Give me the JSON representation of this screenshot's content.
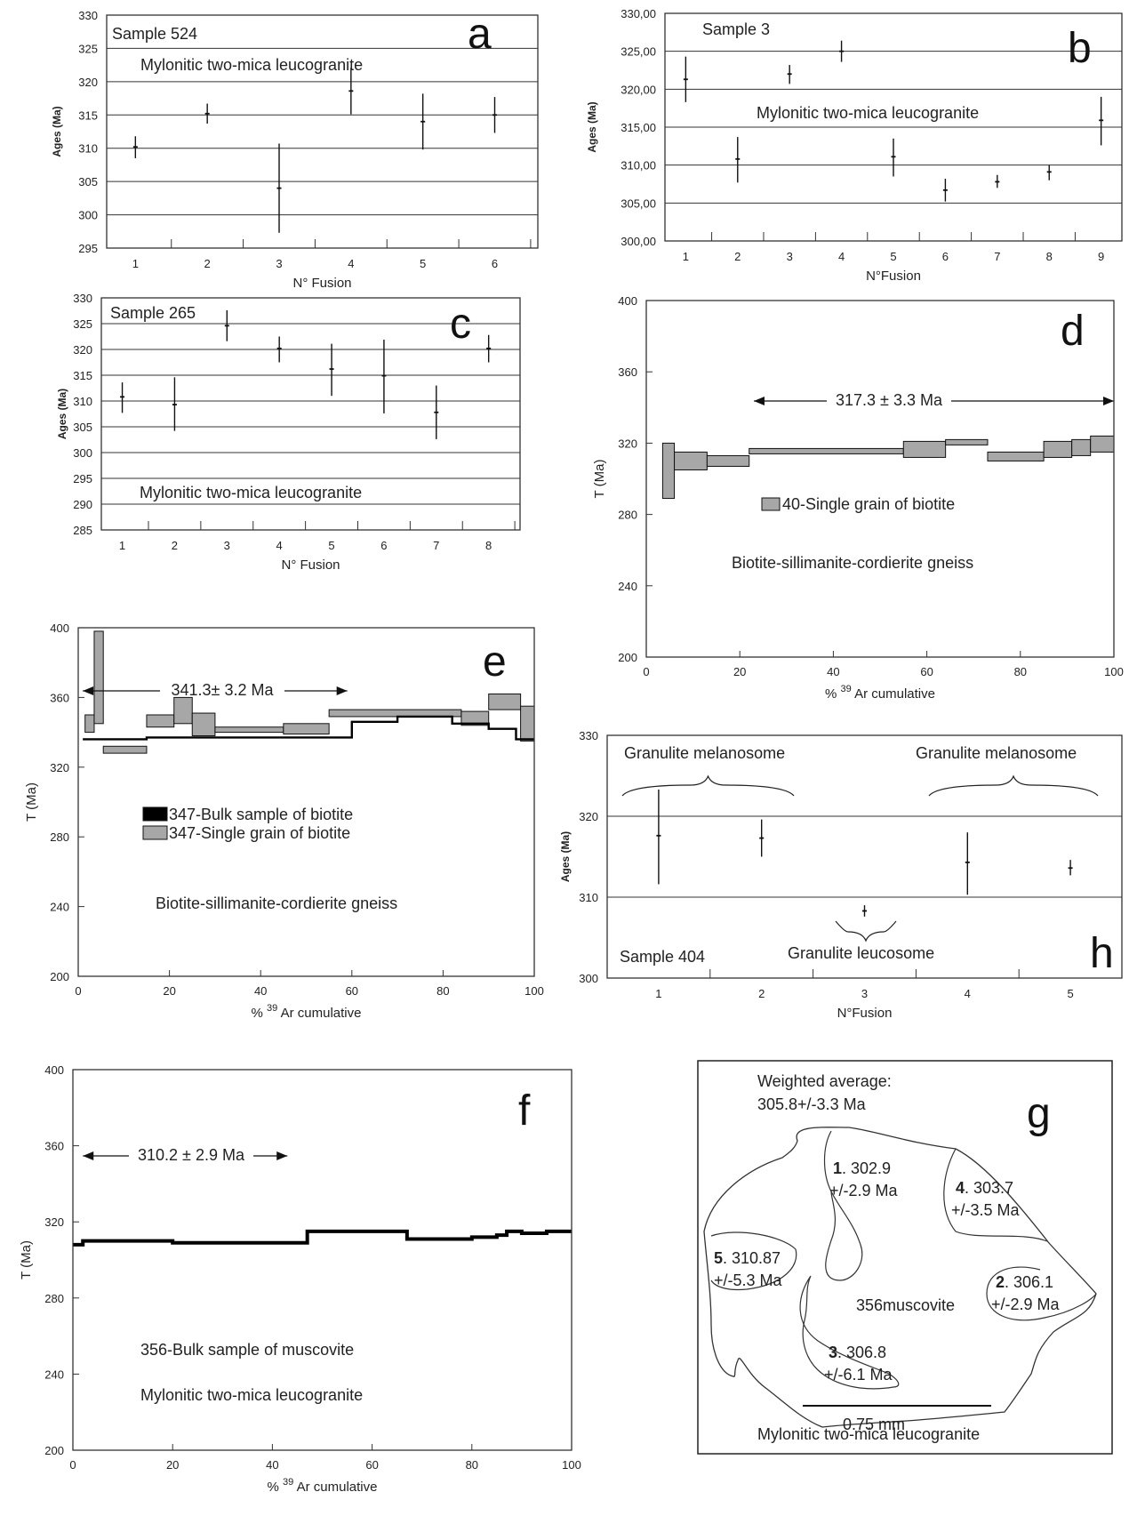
{
  "chart_data": [
    {
      "id": "a",
      "type": "scatter",
      "panel_letter": "a",
      "sample_label": "Sample 524",
      "annotation": "Mylonitic two-mica leucogranite",
      "xlabel": "N° Fusion",
      "ylabel": "Ages (Ma)",
      "x_ticks": [
        "1",
        "2",
        "3",
        "4",
        "5",
        "6"
      ],
      "y_ticks": [
        "330",
        "325",
        "320",
        "315",
        "310",
        "305",
        "300",
        "295"
      ],
      "ylim": [
        295,
        330
      ],
      "grid": "horizontal",
      "points": [
        {
          "x": 1,
          "y": 310.2,
          "low": 308.5,
          "high": 311.8
        },
        {
          "x": 2,
          "y": 315.2,
          "low": 313.7,
          "high": 316.7
        },
        {
          "x": 3,
          "y": 304.0,
          "low": 297.3,
          "high": 310.7
        },
        {
          "x": 4,
          "y": 318.6,
          "low": 315.1,
          "high": 322.1
        },
        {
          "x": 5,
          "y": 314.0,
          "low": 309.8,
          "high": 318.2
        },
        {
          "x": 6,
          "y": 315.0,
          "low": 312.3,
          "high": 317.7
        }
      ]
    },
    {
      "id": "b",
      "type": "scatter",
      "panel_letter": "b",
      "sample_label": "Sample 3",
      "annotation": "Mylonitic two-mica leucogranite",
      "xlabel": "N°Fusion",
      "ylabel": "Ages (Ma)",
      "x_ticks": [
        "1",
        "2",
        "3",
        "4",
        "5",
        "6",
        "7",
        "8",
        "9"
      ],
      "y_ticks": [
        "330,00",
        "325,00",
        "320,00",
        "315,00",
        "310,00",
        "305,00",
        "300,00"
      ],
      "ylim": [
        300,
        330
      ],
      "grid": "horizontal",
      "points": [
        {
          "x": 1,
          "y": 321.3,
          "low": 318.3,
          "high": 324.3
        },
        {
          "x": 2,
          "y": 310.8,
          "low": 307.7,
          "high": 313.7
        },
        {
          "x": 3,
          "y": 322.0,
          "low": 320.7,
          "high": 323.2
        },
        {
          "x": 4,
          "y": 325.0,
          "low": 323.6,
          "high": 326.4
        },
        {
          "x": 5,
          "y": 311.1,
          "low": 308.5,
          "high": 313.5
        },
        {
          "x": 6,
          "y": 306.7,
          "low": 305.2,
          "high": 308.2
        },
        {
          "x": 7,
          "y": 307.8,
          "low": 307.0,
          "high": 308.7
        },
        {
          "x": 8,
          "y": 309.1,
          "low": 308.0,
          "high": 310.0
        },
        {
          "x": 9,
          "y": 315.9,
          "low": 312.6,
          "high": 319.0
        }
      ]
    },
    {
      "id": "c",
      "type": "scatter",
      "panel_letter": "c",
      "sample_label": "Sample 265",
      "annotation": "Mylonitic two-mica leucogranite",
      "xlabel": "N° Fusion",
      "ylabel": "Ages (Ma)",
      "x_ticks": [
        "1",
        "2",
        "3",
        "4",
        "5",
        "6",
        "7",
        "8"
      ],
      "y_ticks": [
        "330",
        "325",
        "320",
        "315",
        "310",
        "305",
        "300",
        "295",
        "290",
        "285"
      ],
      "ylim": [
        285,
        330
      ],
      "grid": "horizontal",
      "points": [
        {
          "x": 1,
          "y": 310.8,
          "low": 307.7,
          "high": 313.6
        },
        {
          "x": 2,
          "y": 309.3,
          "low": 304.2,
          "high": 314.6
        },
        {
          "x": 3,
          "y": 324.6,
          "low": 321.6,
          "high": 327.6
        },
        {
          "x": 4,
          "y": 320.2,
          "low": 317.5,
          "high": 322.5
        },
        {
          "x": 5,
          "y": 316.2,
          "low": 311.0,
          "high": 321.1
        },
        {
          "x": 6,
          "y": 314.9,
          "low": 307.6,
          "high": 321.9
        },
        {
          "x": 7,
          "y": 307.8,
          "low": 302.6,
          "high": 313.0
        },
        {
          "x": 8,
          "y": 320.2,
          "low": 317.5,
          "high": 322.8
        }
      ]
    },
    {
      "id": "d",
      "type": "area",
      "panel_letter": "d",
      "annotation": "Biotite-sillimanite-cordierite gneiss",
      "plateau_label": "317.3 ± 3.3 Ma",
      "legend_label": "40-Single grain of biotite",
      "xlabel_prefix": "% ",
      "xlabel_sup": "39",
      "xlabel_rest": " Ar cumulative",
      "ylabel": "T (Ma)",
      "x_ticks": [
        "0",
        "20",
        "40",
        "60",
        "80",
        "100"
      ],
      "y_ticks": [
        "400",
        "360",
        "320",
        "280",
        "240",
        "200"
      ],
      "xlim": [
        0,
        100
      ],
      "ylim": [
        200,
        400
      ],
      "plateau_arrow": {
        "from": 23,
        "to": 100
      },
      "steps": [
        {
          "x0": 3.5,
          "x1": 6,
          "lo": 289,
          "hi": 320
        },
        {
          "x0": 6,
          "x1": 13,
          "lo": 305,
          "hi": 315
        },
        {
          "x0": 13,
          "x1": 22,
          "lo": 307,
          "hi": 313
        },
        {
          "x0": 22,
          "x1": 55,
          "lo": 314,
          "hi": 317
        },
        {
          "x0": 55,
          "x1": 64,
          "lo": 312,
          "hi": 321
        },
        {
          "x0": 64,
          "x1": 73,
          "lo": 319,
          "hi": 322
        },
        {
          "x0": 73,
          "x1": 85,
          "lo": 310,
          "hi": 315
        },
        {
          "x0": 85,
          "x1": 91,
          "lo": 312,
          "hi": 321
        },
        {
          "x0": 91,
          "x1": 95,
          "lo": 313,
          "hi": 322
        },
        {
          "x0": 95,
          "x1": 100,
          "lo": 315,
          "hi": 324
        }
      ]
    },
    {
      "id": "e",
      "type": "area",
      "panel_letter": "e",
      "annotation": "Biotite-sillimanite-cordierite gneiss",
      "plateau_label": "341.3± 3.2 Ma",
      "legend": [
        {
          "name": "347-Bulk sample of biotite",
          "color": "#000000"
        },
        {
          "name": "347-Single grain of biotite",
          "color": "#a7a7a7"
        }
      ],
      "xlabel_prefix": "% ",
      "xlabel_sup": "39",
      "xlabel_rest": " Ar cumulative",
      "ylabel": "T (Ma)",
      "x_ticks": [
        "0",
        "20",
        "40",
        "60",
        "80",
        "100"
      ],
      "y_ticks": [
        "400",
        "360",
        "320",
        "280",
        "240",
        "200"
      ],
      "xlim": [
        0,
        100
      ],
      "ylim": [
        200,
        400
      ],
      "plateau_arrow": {
        "from": 1,
        "to": 59
      },
      "single_grain_steps": [
        {
          "x0": 1.5,
          "x1": 3.5,
          "lo": 340,
          "hi": 350
        },
        {
          "x0": 3.5,
          "x1": 5.5,
          "lo": 345,
          "hi": 398
        },
        {
          "x0": 5.5,
          "x1": 15,
          "lo": 328,
          "hi": 332
        },
        {
          "x0": 15,
          "x1": 21,
          "lo": 343,
          "hi": 350
        },
        {
          "x0": 21,
          "x1": 25,
          "lo": 345,
          "hi": 360
        },
        {
          "x0": 25,
          "x1": 30,
          "lo": 338,
          "hi": 351
        },
        {
          "x0": 30,
          "x1": 45,
          "lo": 340,
          "hi": 343
        },
        {
          "x0": 45,
          "x1": 55,
          "lo": 339,
          "hi": 345
        },
        {
          "x0": 55,
          "x1": 84,
          "lo": 349,
          "hi": 353
        },
        {
          "x0": 84,
          "x1": 90,
          "lo": 344,
          "hi": 352
        },
        {
          "x0": 90,
          "x1": 97,
          "lo": 353,
          "hi": 362
        },
        {
          "x0": 97,
          "x1": 100,
          "lo": 335,
          "hi": 355
        }
      ],
      "bulk_steps": [
        {
          "x0": 1,
          "x1": 15,
          "y": 336
        },
        {
          "x0": 15,
          "x1": 30,
          "y": 337
        },
        {
          "x0": 30,
          "x1": 60,
          "y": 337
        },
        {
          "x0": 60,
          "x1": 70,
          "y": 346
        },
        {
          "x0": 70,
          "x1": 82,
          "y": 349
        },
        {
          "x0": 82,
          "x1": 90,
          "y": 345
        },
        {
          "x0": 90,
          "x1": 96,
          "y": 342
        },
        {
          "x0": 96,
          "x1": 100,
          "y": 336
        }
      ]
    },
    {
      "id": "h",
      "type": "scatter",
      "panel_letter": "h",
      "sample_label": "Sample 404",
      "xlabel": "N°Fusion",
      "ylabel": "Ages (Ma)",
      "x_ticks": [
        "1",
        "2",
        "3",
        "4",
        "5"
      ],
      "y_ticks": [
        "330",
        "320",
        "310",
        "300"
      ],
      "ylim": [
        300,
        330
      ],
      "grid": "horizontal",
      "group_labels": [
        "Granulite melanosome",
        "Granulite melanosome",
        "Granulite leucosome"
      ],
      "points": [
        {
          "x": 1,
          "y": 317.6,
          "low": 311.6,
          "high": 323.3
        },
        {
          "x": 2,
          "y": 317.3,
          "low": 315.0,
          "high": 319.6
        },
        {
          "x": 3,
          "y": 308.3,
          "low": 307.6,
          "high": 309.0
        },
        {
          "x": 4,
          "y": 314.3,
          "low": 310.3,
          "high": 318.0
        },
        {
          "x": 5,
          "y": 313.6,
          "low": 312.7,
          "high": 314.6
        }
      ]
    },
    {
      "id": "f",
      "type": "area",
      "panel_letter": "f",
      "annotation": "Mylonitic two-mica leucogranite",
      "legend_label": "356-Bulk sample of muscovite",
      "plateau_label": "310.2 ± 2.9 Ma",
      "xlabel_prefix": "% ",
      "xlabel_sup": "39",
      "xlabel_rest": " Ar cumulative",
      "ylabel": "T (Ma)",
      "x_ticks": [
        "0",
        "20",
        "40",
        "60",
        "80",
        "100"
      ],
      "y_ticks": [
        "400",
        "360",
        "320",
        "280",
        "240",
        "200"
      ],
      "xlim": [
        0,
        100
      ],
      "ylim": [
        200,
        400
      ],
      "plateau_arrow": {
        "from": 2,
        "to": 43
      },
      "steps": [
        {
          "x0": 0,
          "x1": 2,
          "y": 308
        },
        {
          "x0": 2,
          "x1": 20,
          "y": 310
        },
        {
          "x0": 20,
          "x1": 47,
          "y": 309
        },
        {
          "x0": 47,
          "x1": 67,
          "y": 315
        },
        {
          "x0": 67,
          "x1": 80,
          "y": 311
        },
        {
          "x0": 80,
          "x1": 85,
          "y": 312
        },
        {
          "x0": 85,
          "x1": 87,
          "y": 313
        },
        {
          "x0": 87,
          "x1": 90,
          "y": 315
        },
        {
          "x0": 90,
          "x1": 95,
          "y": 314
        },
        {
          "x0": 95,
          "x1": 100,
          "y": 315
        }
      ]
    }
  ],
  "panel_g": {
    "letter": "g",
    "weighted_title": "Weighted average:",
    "weighted_value": "305.8+/-3.3 Ma",
    "mineral_label": "356muscovite",
    "scale_label": "0.75 mm",
    "rock_label": "Mylonitic two-mica leucogranite",
    "grains": [
      {
        "num": "1",
        "age": ". 302.9",
        "err": "+/-2.9 Ma"
      },
      {
        "num": "2",
        "age": ". 306.1",
        "err": "+/-2.9 Ma"
      },
      {
        "num": "3",
        "age": ". 306.8",
        "err": "+/-6.1 Ma"
      },
      {
        "num": "4",
        "age": ". 303.7",
        "err": "+/-3.5 Ma"
      },
      {
        "num": "5",
        "age": ". 310.87",
        "err": "+/-5.3 Ma"
      }
    ]
  }
}
